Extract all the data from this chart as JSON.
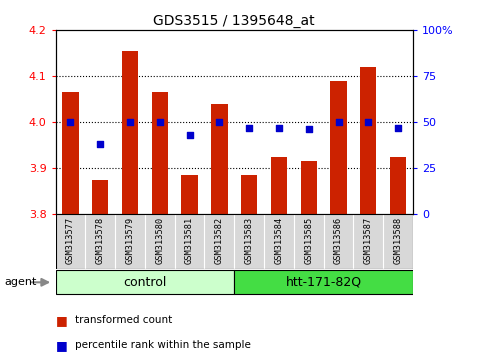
{
  "title": "GDS3515 / 1395648_at",
  "samples": [
    "GSM313577",
    "GSM313578",
    "GSM313579",
    "GSM313580",
    "GSM313581",
    "GSM313582",
    "GSM313583",
    "GSM313584",
    "GSM313585",
    "GSM313586",
    "GSM313587",
    "GSM313588"
  ],
  "transformed_count": [
    4.065,
    3.875,
    4.155,
    4.065,
    3.885,
    4.04,
    3.885,
    3.925,
    3.915,
    4.09,
    4.12,
    3.925
  ],
  "percentile_rank": [
    50,
    38,
    50,
    50,
    43,
    50,
    47,
    47,
    46,
    50,
    50,
    47
  ],
  "ylim_left": [
    3.8,
    4.2
  ],
  "ylim_right": [
    0,
    100
  ],
  "yticks_left": [
    3.8,
    3.9,
    4.0,
    4.1,
    4.2
  ],
  "yticks_right": [
    0,
    25,
    50,
    75,
    100
  ],
  "ytick_labels_right": [
    "0",
    "25",
    "50",
    "75",
    "100%"
  ],
  "groups": [
    {
      "label": "control",
      "start": 0,
      "end": 6,
      "color": "#ccffcc"
    },
    {
      "label": "htt-171-82Q",
      "start": 6,
      "end": 12,
      "color": "#44dd44"
    }
  ],
  "agent_label": "agent",
  "bar_color": "#CC2200",
  "dot_color": "#0000CC",
  "bar_width": 0.55,
  "plot_bg": "white",
  "sample_area_bg": "#d8d8d8",
  "legend_items": [
    {
      "label": "transformed count",
      "color": "#CC2200",
      "marker": "s"
    },
    {
      "label": "percentile rank within the sample",
      "color": "#0000CC",
      "marker": "s"
    }
  ],
  "gridlines": [
    3.9,
    4.0,
    4.1
  ]
}
